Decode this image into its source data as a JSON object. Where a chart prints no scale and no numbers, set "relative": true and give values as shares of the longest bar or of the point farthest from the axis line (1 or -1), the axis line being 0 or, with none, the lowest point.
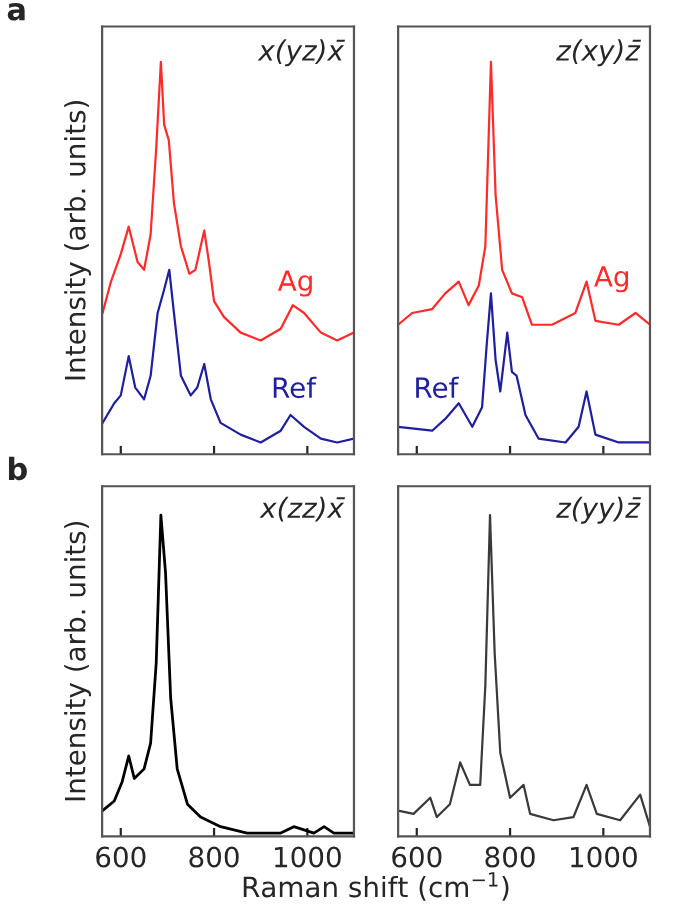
{
  "chart_data": [
    {
      "type": "line",
      "relative": true,
      "ylabel": "Intensity (arb. units)",
      "annotations": [
        "a",
        "x(yz)x̄"
      ],
      "xlim": [
        560,
        1100
      ],
      "xticks": [
        600,
        800,
        1000
      ],
      "tick_labels": false,
      "grid": false,
      "legend": false,
      "series": [
        {
          "name": "Ag",
          "color": "#ff2a2a",
          "x": [
            561,
            579,
            600,
            617,
            636,
            650,
            664,
            676,
            686,
            693,
            703,
            714,
            729,
            747,
            760,
            779,
            789,
            800,
            821,
            857,
            900,
            943,
            969,
            993,
            1029,
            1064,
            1100
          ],
          "values": [
            0.36,
            0.44,
            0.51,
            0.58,
            0.49,
            0.47,
            0.56,
            0.78,
            1,
            0.84,
            0.8,
            0.64,
            0.53,
            0.46,
            0.47,
            0.57,
            0.49,
            0.39,
            0.35,
            0.31,
            0.29,
            0.32,
            0.38,
            0.36,
            0.31,
            0.29,
            0.31
          ]
        },
        {
          "name": "Ref",
          "color": "#1f1fa0",
          "x": [
            561,
            586,
            600,
            617,
            631,
            650,
            664,
            679,
            693,
            704,
            714,
            729,
            750,
            764,
            779,
            793,
            814,
            857,
            900,
            943,
            964,
            993,
            1029,
            1064,
            1100
          ],
          "values": [
            0.08,
            0.13,
            0.15,
            0.25,
            0.17,
            0.14,
            0.2,
            0.36,
            0.42,
            0.47,
            0.36,
            0.2,
            0.15,
            0.17,
            0.23,
            0.14,
            0.08,
            0.05,
            0.03,
            0.06,
            0.1,
            0.07,
            0.04,
            0.03,
            0.04
          ]
        }
      ]
    },
    {
      "type": "line",
      "relative": true,
      "annotations": [
        "z(xy)z̄"
      ],
      "xlim": [
        560,
        1100
      ],
      "xticks": [
        600,
        800,
        1000
      ],
      "tick_labels": false,
      "grid": false,
      "legend": false,
      "series": [
        {
          "name": "Ag",
          "color": "#ff2a2a",
          "x": [
            560,
            590,
            633,
            661,
            690,
            711,
            733,
            747,
            759,
            769,
            783,
            804,
            826,
            847,
            890,
            940,
            964,
            983,
            1033,
            1069,
            1100
          ],
          "values": [
            0.33,
            0.36,
            0.37,
            0.41,
            0.44,
            0.38,
            0.43,
            0.53,
            1,
            0.66,
            0.47,
            0.41,
            0.4,
            0.33,
            0.33,
            0.36,
            0.44,
            0.34,
            0.33,
            0.36,
            0.33
          ]
        },
        {
          "name": "Ref",
          "color": "#1f1fa0",
          "x": [
            560,
            633,
            661,
            690,
            719,
            740,
            750,
            759,
            769,
            779,
            794,
            804,
            814,
            833,
            861,
            919,
            947,
            964,
            983,
            1033,
            1069,
            1100
          ],
          "values": [
            0.07,
            0.06,
            0.09,
            0.13,
            0.07,
            0.12,
            0.28,
            0.41,
            0.24,
            0.16,
            0.31,
            0.21,
            0.2,
            0.1,
            0.04,
            0.03,
            0.07,
            0.16,
            0.05,
            0.03,
            0.03,
            0.03
          ]
        }
      ]
    },
    {
      "type": "line",
      "relative": true,
      "ylabel": "Intensity (arb. units)",
      "xlabel": "Raman shift (cm$^{−1}$)",
      "annotations": [
        "b",
        "x(zz)x̄"
      ],
      "xlim": [
        560,
        1100
      ],
      "xticks": [
        600,
        800,
        1000
      ],
      "tick_labels": "x",
      "grid": false,
      "legend": false,
      "series": [
        {
          "color": "#000000",
          "x": [
            561,
            586,
            603,
            617,
            629,
            650,
            664,
            676,
            686,
            696,
            707,
            721,
            743,
            771,
            814,
            871,
            943,
            971,
            993,
            1014,
            1036,
            1057,
            1100
          ],
          "values": [
            0.08,
            0.11,
            0.17,
            0.25,
            0.18,
            0.21,
            0.29,
            0.54,
            1,
            0.82,
            0.43,
            0.21,
            0.1,
            0.06,
            0.03,
            0.01,
            0.01,
            0.03,
            0.02,
            0.01,
            0.03,
            0.01,
            0.01
          ]
        }
      ]
    },
    {
      "type": "line",
      "relative": true,
      "annotations": [
        "z(yy)z̄"
      ],
      "xlim": [
        560,
        1100
      ],
      "xticks": [
        600,
        800,
        1000
      ],
      "tick_labels": "x",
      "grid": false,
      "legend": false,
      "series": [
        {
          "color": "#3a3a3a",
          "x": [
            560,
            593,
            629,
            643,
            671,
            693,
            714,
            736,
            747,
            757,
            767,
            779,
            800,
            829,
            843,
            893,
            936,
            964,
            986,
            1036,
            1079,
            1100
          ],
          "values": [
            0.08,
            0.07,
            0.12,
            0.06,
            0.1,
            0.23,
            0.16,
            0.16,
            0.47,
            1,
            0.57,
            0.26,
            0.12,
            0.16,
            0.07,
            0.05,
            0.06,
            0.16,
            0.07,
            0.05,
            0.13,
            0.03
          ]
        }
      ]
    }
  ]
}
